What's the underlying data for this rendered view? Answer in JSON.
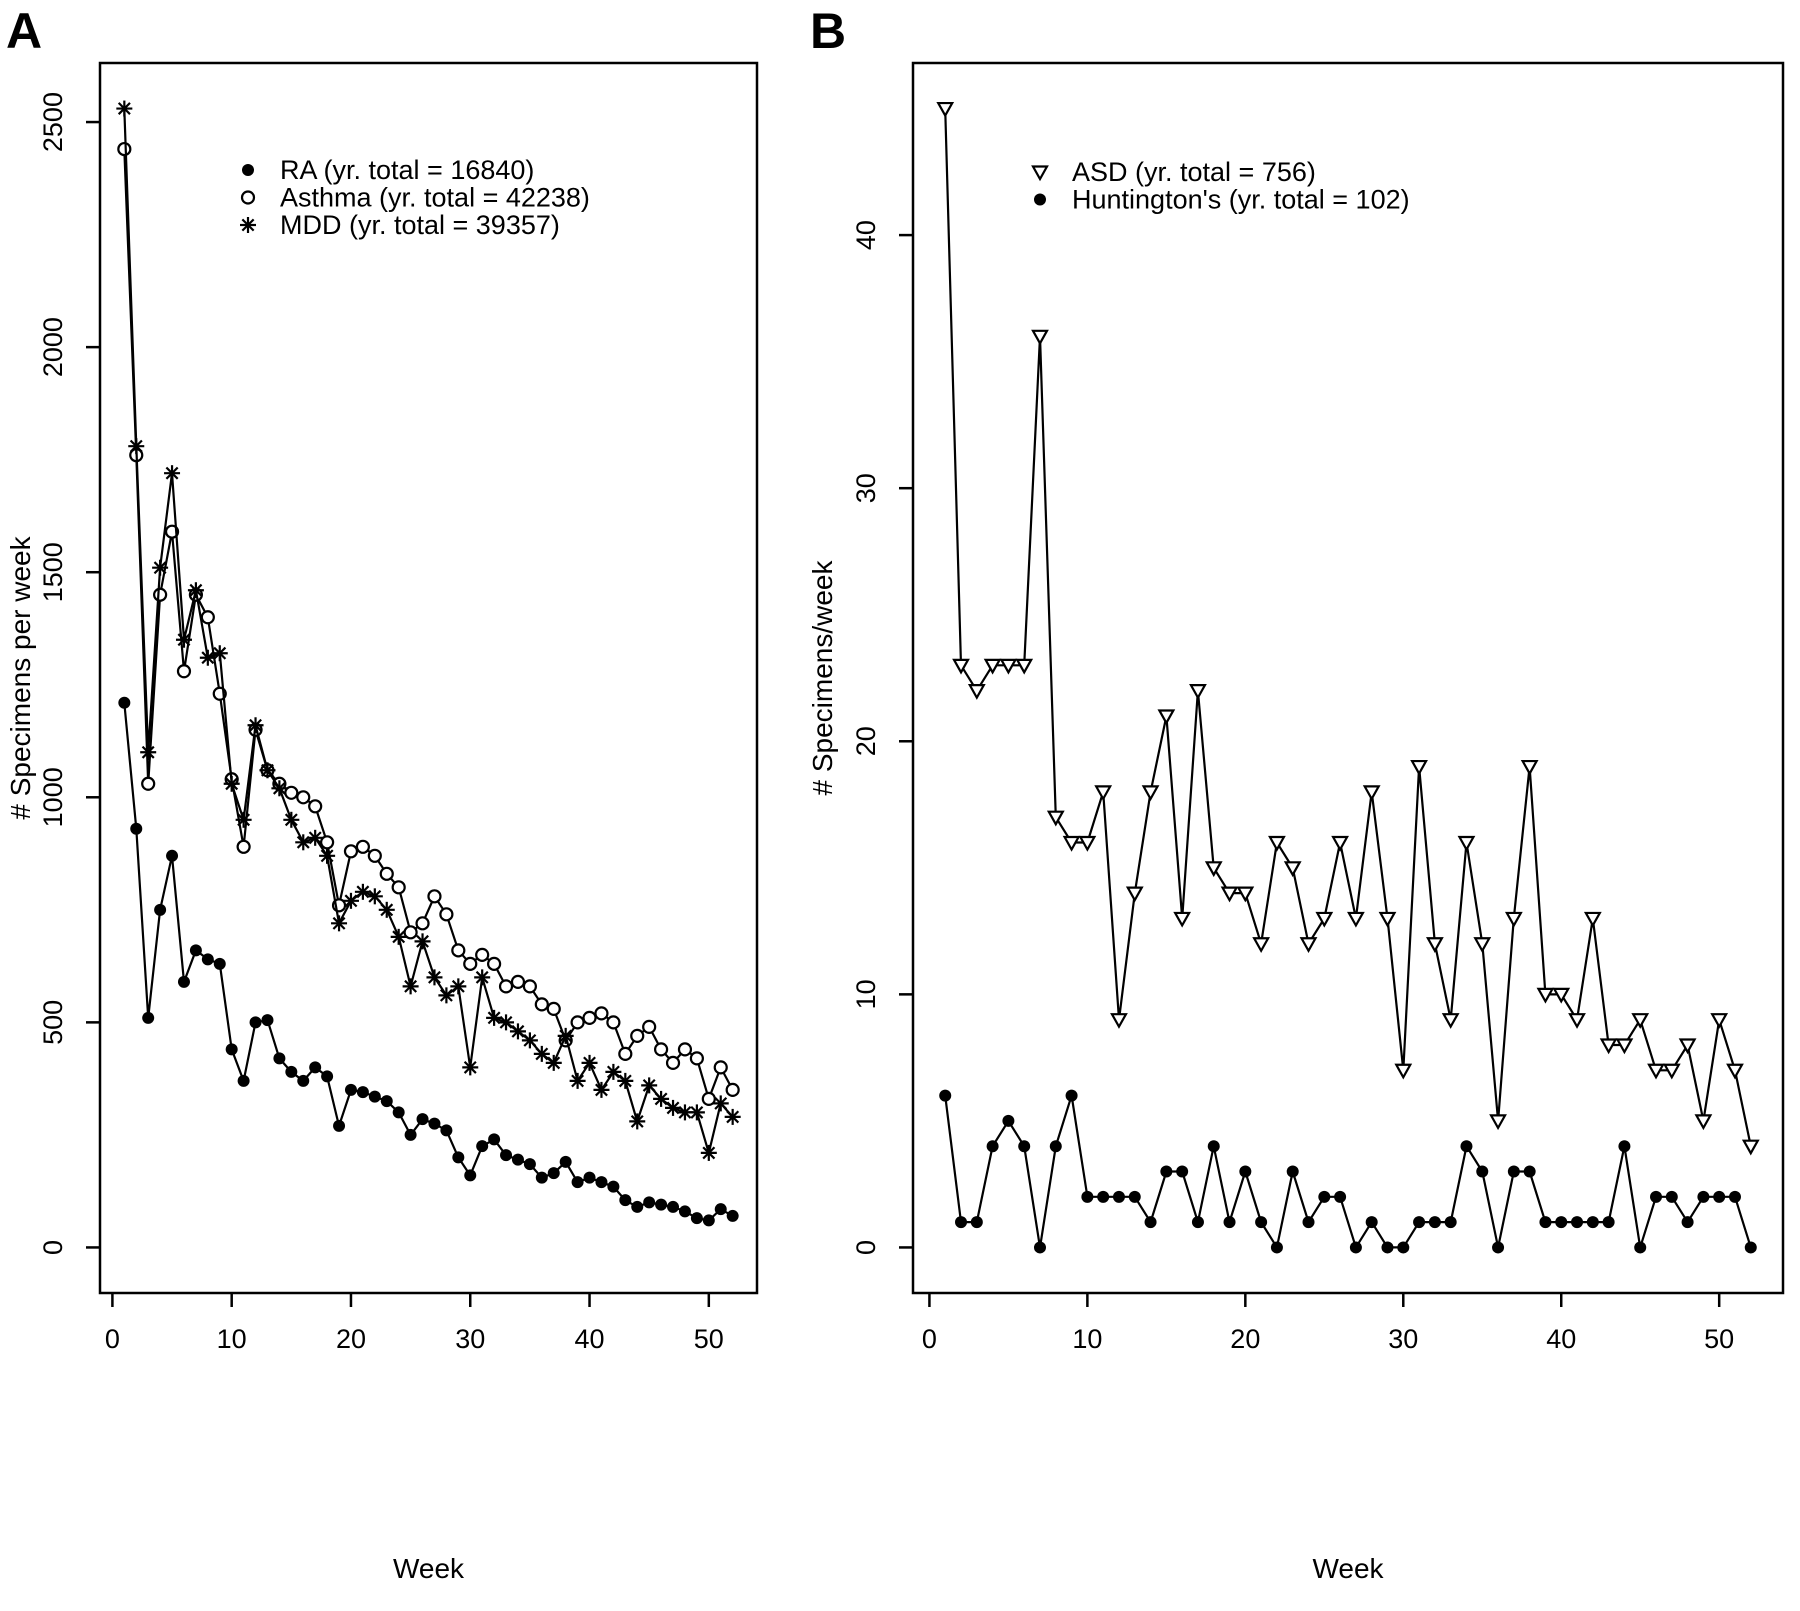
{
  "figure": {
    "background": "#ffffff",
    "line_color": "#000000"
  },
  "chart_data": [
    {
      "type": "line",
      "panel_label": "A",
      "xlabel": "Week",
      "ylabel": "# Specimens per week",
      "xlim": [
        1,
        52
      ],
      "ylim": [
        0,
        2530
      ],
      "xticks": [
        0,
        10,
        20,
        30,
        40,
        50
      ],
      "yticks": [
        0,
        500,
        1000,
        1500,
        2000,
        2500
      ],
      "grid": false,
      "legend_position": "top-left-inset",
      "legend": [
        {
          "marker": "filled-circle",
          "label": "RA (yr. total = 16840)"
        },
        {
          "marker": "open-circle",
          "label": "Asthma (yr. total = 42238)"
        },
        {
          "marker": "asterisk",
          "label": "MDD (yr. total = 39357)"
        }
      ],
      "weeks": [
        1,
        2,
        3,
        4,
        5,
        6,
        7,
        8,
        9,
        10,
        11,
        12,
        13,
        14,
        15,
        16,
        17,
        18,
        19,
        20,
        21,
        22,
        23,
        24,
        25,
        26,
        27,
        28,
        29,
        30,
        31,
        32,
        33,
        34,
        35,
        36,
        37,
        38,
        39,
        40,
        41,
        42,
        43,
        44,
        45,
        46,
        47,
        48,
        49,
        50,
        51,
        52
      ],
      "series": [
        {
          "name": "RA",
          "marker": "filled-circle",
          "yr_total": 16840,
          "values": [
            1210,
            930,
            510,
            750,
            870,
            590,
            660,
            640,
            630,
            440,
            370,
            500,
            505,
            420,
            390,
            370,
            400,
            380,
            270,
            350,
            345,
            335,
            325,
            300,
            250,
            285,
            275,
            260,
            200,
            160,
            225,
            240,
            205,
            195,
            185,
            155,
            165,
            190,
            145,
            155,
            145,
            135,
            105,
            90,
            100,
            95,
            90,
            80,
            65,
            60,
            85,
            70
          ]
        },
        {
          "name": "Asthma",
          "marker": "open-circle",
          "yr_total": 42238,
          "values": [
            2440,
            1760,
            1030,
            1450,
            1590,
            1280,
            1450,
            1400,
            1230,
            1040,
            890,
            1150,
            1060,
            1030,
            1010,
            1000,
            980,
            900,
            760,
            880,
            890,
            870,
            830,
            800,
            700,
            720,
            780,
            740,
            660,
            630,
            650,
            630,
            580,
            590,
            580,
            540,
            530,
            460,
            500,
            510,
            520,
            500,
            430,
            470,
            490,
            440,
            410,
            440,
            420,
            330,
            400,
            350
          ]
        },
        {
          "name": "MDD",
          "marker": "asterisk",
          "yr_total": 39357,
          "values": [
            2530,
            1780,
            1100,
            1510,
            1720,
            1350,
            1460,
            1310,
            1320,
            1030,
            950,
            1160,
            1060,
            1020,
            950,
            900,
            910,
            870,
            720,
            770,
            790,
            780,
            750,
            690,
            580,
            680,
            600,
            560,
            580,
            400,
            600,
            510,
            500,
            480,
            460,
            430,
            410,
            470,
            370,
            410,
            350,
            390,
            370,
            280,
            360,
            330,
            310,
            300,
            300,
            210,
            320,
            290
          ]
        }
      ]
    },
    {
      "type": "line",
      "panel_label": "B",
      "xlabel": "Week",
      "ylabel": "# Specimens/week",
      "xlim": [
        1,
        52
      ],
      "ylim": [
        0,
        45
      ],
      "xticks": [
        0,
        10,
        20,
        30,
        40,
        50
      ],
      "yticks": [
        0,
        10,
        20,
        30,
        40
      ],
      "grid": false,
      "legend_position": "top-left-inset",
      "legend": [
        {
          "marker": "open-triangle-down",
          "label": "ASD (yr. total = 756)"
        },
        {
          "marker": "filled-circle",
          "label": "Huntington's (yr. total = 102)"
        }
      ],
      "weeks": [
        1,
        2,
        3,
        4,
        5,
        6,
        7,
        8,
        9,
        10,
        11,
        12,
        13,
        14,
        15,
        16,
        17,
        18,
        19,
        20,
        21,
        22,
        23,
        24,
        25,
        26,
        27,
        28,
        29,
        30,
        31,
        32,
        33,
        34,
        35,
        36,
        37,
        38,
        39,
        40,
        41,
        42,
        43,
        44,
        45,
        46,
        47,
        48,
        49,
        50,
        51,
        52
      ],
      "series": [
        {
          "name": "ASD",
          "marker": "open-triangle-down",
          "yr_total": 756,
          "values": [
            45,
            23,
            22,
            23,
            23,
            23,
            36,
            17,
            16,
            16,
            18,
            9,
            14,
            18,
            21,
            13,
            22,
            15,
            14,
            14,
            12,
            16,
            15,
            12,
            13,
            16,
            13,
            18,
            13,
            7,
            19,
            12,
            9,
            16,
            12,
            5,
            13,
            19,
            10,
            10,
            9,
            13,
            8,
            8,
            9,
            7,
            7,
            8,
            5,
            9,
            7,
            4
          ]
        },
        {
          "name": "Huntington's",
          "marker": "filled-circle",
          "yr_total": 102,
          "values": [
            6,
            1,
            1,
            4,
            5,
            4,
            0,
            4,
            6,
            2,
            2,
            2,
            2,
            1,
            3,
            3,
            1,
            4,
            1,
            3,
            1,
            0,
            3,
            1,
            2,
            2,
            0,
            1,
            0,
            0,
            1,
            1,
            1,
            4,
            3,
            0,
            3,
            3,
            1,
            1,
            1,
            1,
            1,
            4,
            0,
            2,
            2,
            1,
            2,
            2,
            2,
            0
          ]
        }
      ]
    }
  ]
}
